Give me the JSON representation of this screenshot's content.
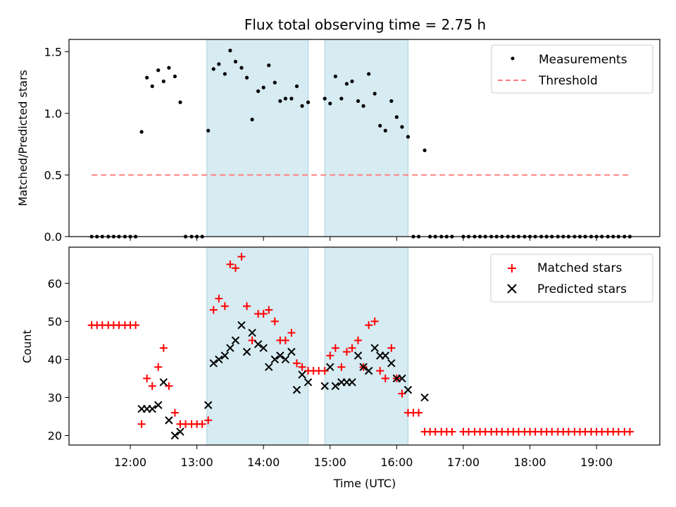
{
  "figure_title": "Flux total observing time = 2.75 h",
  "chart_data": [
    {
      "type": "scatter",
      "ylabel": "Matched/Predicted stars",
      "xlim": [
        11.08,
        19.95
      ],
      "ylim": [
        0,
        1.6
      ],
      "yticks": [
        0.0,
        0.5,
        1.0,
        1.5
      ],
      "ytick_labels": [
        "0.0",
        "0.5",
        "1.0",
        "1.5"
      ],
      "grid": false,
      "legend_position": "top-right",
      "highlight_spans": [
        [
          13.15,
          14.67
        ],
        [
          14.92,
          16.17
        ]
      ],
      "series": [
        {
          "name": "Measurements",
          "marker": "dot",
          "color": "#000000",
          "x": [
            11.42,
            11.5,
            11.58,
            11.67,
            11.75,
            11.83,
            11.92,
            12.0,
            12.08,
            12.17,
            12.25,
            12.33,
            12.42,
            12.5,
            12.58,
            12.67,
            12.75,
            12.83,
            12.92,
            13.0,
            13.08,
            13.17,
            13.25,
            13.33,
            13.42,
            13.5,
            13.58,
            13.67,
            13.75,
            13.83,
            13.92,
            14.0,
            14.08,
            14.17,
            14.25,
            14.33,
            14.42,
            14.5,
            14.58,
            14.67,
            14.92,
            15.0,
            15.08,
            15.17,
            15.25,
            15.33,
            15.42,
            15.5,
            15.58,
            15.67,
            15.75,
            15.83,
            15.92,
            16.0,
            16.08,
            16.17,
            16.25,
            16.33,
            16.42,
            16.5,
            16.58,
            16.67,
            16.75,
            16.83,
            17.0,
            17.08,
            17.17,
            17.25,
            17.33,
            17.42,
            17.5,
            17.58,
            17.67,
            17.75,
            17.83,
            17.92,
            18.0,
            18.08,
            18.17,
            18.25,
            18.33,
            18.42,
            18.5,
            18.58,
            18.67,
            18.75,
            18.83,
            18.92,
            19.0,
            19.08,
            19.17,
            19.25,
            19.33,
            19.42,
            19.5
          ],
          "y": [
            0,
            0,
            0,
            0,
            0,
            0,
            0,
            0,
            0,
            0.85,
            1.29,
            1.22,
            1.35,
            1.26,
            1.37,
            1.3,
            1.09,
            0,
            0,
            0,
            0,
            0.86,
            1.36,
            1.4,
            1.32,
            1.51,
            1.42,
            1.37,
            1.29,
            0.95,
            1.18,
            1.21,
            1.39,
            1.25,
            1.1,
            1.12,
            1.12,
            1.22,
            1.06,
            1.09,
            1.12,
            1.08,
            1.3,
            1.12,
            1.24,
            1.26,
            1.1,
            1.06,
            1.32,
            1.16,
            0.9,
            0.86,
            1.1,
            0.97,
            0.89,
            0.81,
            0,
            0,
            0.7,
            0,
            0,
            0,
            0,
            0,
            0,
            0,
            0,
            0,
            0,
            0,
            0,
            0,
            0,
            0,
            0,
            0,
            0,
            0,
            0,
            0,
            0,
            0,
            0,
            0,
            0,
            0,
            0,
            0,
            0,
            0,
            0,
            0,
            0,
            0,
            0
          ]
        },
        {
          "name": "Threshold",
          "type": "line",
          "style": "dashed",
          "color": "#ff7f7f",
          "x": [
            11.42,
            19.5
          ],
          "y": [
            0.5,
            0.5
          ]
        }
      ]
    },
    {
      "type": "scatter",
      "xlabel": "Time (UTC)",
      "ylabel": "Count",
      "xlim": [
        11.08,
        19.95
      ],
      "ylim": [
        17.5,
        69.5
      ],
      "yticks": [
        20,
        30,
        40,
        50,
        60
      ],
      "ytick_labels": [
        "20",
        "30",
        "40",
        "50",
        "60"
      ],
      "xticks": [
        12,
        13,
        14,
        15,
        16,
        17,
        18,
        19
      ],
      "xtick_labels": [
        "12:00",
        "13:00",
        "14:00",
        "15:00",
        "16:00",
        "17:00",
        "18:00",
        "19:00"
      ],
      "grid": false,
      "legend_position": "top-right",
      "highlight_spans": [
        [
          13.15,
          14.67
        ],
        [
          14.92,
          16.17
        ]
      ],
      "series": [
        {
          "name": "Matched stars",
          "marker": "plus",
          "color": "#ff0000",
          "x": [
            11.42,
            11.5,
            11.58,
            11.67,
            11.75,
            11.83,
            11.92,
            12.0,
            12.08,
            12.17,
            12.25,
            12.33,
            12.42,
            12.5,
            12.58,
            12.67,
            12.75,
            12.83,
            12.92,
            13.0,
            13.08,
            13.17,
            13.25,
            13.33,
            13.42,
            13.5,
            13.58,
            13.67,
            13.75,
            13.83,
            13.92,
            14.0,
            14.08,
            14.17,
            14.25,
            14.33,
            14.42,
            14.5,
            14.58,
            14.67,
            14.75,
            14.83,
            14.92,
            15.0,
            15.08,
            15.17,
            15.25,
            15.33,
            15.42,
            15.5,
            15.58,
            15.67,
            15.75,
            15.83,
            15.92,
            16.0,
            16.08,
            16.17,
            16.25,
            16.33,
            16.42,
            16.5,
            16.58,
            16.67,
            16.75,
            16.83,
            17.0,
            17.08,
            17.17,
            17.25,
            17.33,
            17.42,
            17.5,
            17.58,
            17.67,
            17.75,
            17.83,
            17.92,
            18.0,
            18.08,
            18.17,
            18.25,
            18.33,
            18.42,
            18.5,
            18.58,
            18.67,
            18.75,
            18.83,
            18.92,
            19.0,
            19.08,
            19.17,
            19.25,
            19.33,
            19.42,
            19.5
          ],
          "y": [
            49,
            49,
            49,
            49,
            49,
            49,
            49,
            49,
            49,
            23,
            35,
            33,
            38,
            43,
            33,
            26,
            23,
            23,
            23,
            23,
            23,
            24,
            53,
            56,
            54,
            65,
            64,
            67,
            54,
            45,
            52,
            52,
            53,
            50,
            45,
            45,
            47,
            39,
            38,
            37,
            37,
            37,
            37,
            41,
            43,
            38,
            42,
            43,
            45,
            38,
            49,
            50,
            37,
            35,
            43,
            35,
            31,
            26,
            26,
            26,
            21,
            21,
            21,
            21,
            21,
            21,
            21,
            21,
            21,
            21,
            21,
            21,
            21,
            21,
            21,
            21,
            21,
            21,
            21,
            21,
            21,
            21,
            21,
            21,
            21,
            21,
            21,
            21,
            21,
            21,
            21,
            21,
            21,
            21,
            21,
            21,
            21
          ]
        },
        {
          "name": "Predicted stars",
          "marker": "x",
          "color": "#000000",
          "x": [
            12.17,
            12.25,
            12.33,
            12.42,
            12.5,
            12.58,
            12.67,
            12.75,
            13.17,
            13.25,
            13.33,
            13.42,
            13.5,
            13.58,
            13.67,
            13.75,
            13.83,
            13.92,
            14.0,
            14.08,
            14.17,
            14.25,
            14.33,
            14.42,
            14.5,
            14.58,
            14.67,
            14.92,
            15.0,
            15.08,
            15.17,
            15.25,
            15.33,
            15.42,
            15.5,
            15.58,
            15.67,
            15.75,
            15.83,
            15.92,
            16.0,
            16.08,
            16.17,
            16.42
          ],
          "y": [
            27,
            27,
            27,
            28,
            34,
            24,
            20,
            21,
            28,
            39,
            40,
            41,
            43,
            45,
            49,
            42,
            47,
            44,
            43,
            38,
            40,
            41,
            40,
            42,
            32,
            36,
            34,
            33,
            38,
            33,
            34,
            34,
            34,
            41,
            38,
            37,
            43,
            41,
            41,
            39,
            35,
            35,
            32,
            30
          ]
        }
      ]
    }
  ]
}
